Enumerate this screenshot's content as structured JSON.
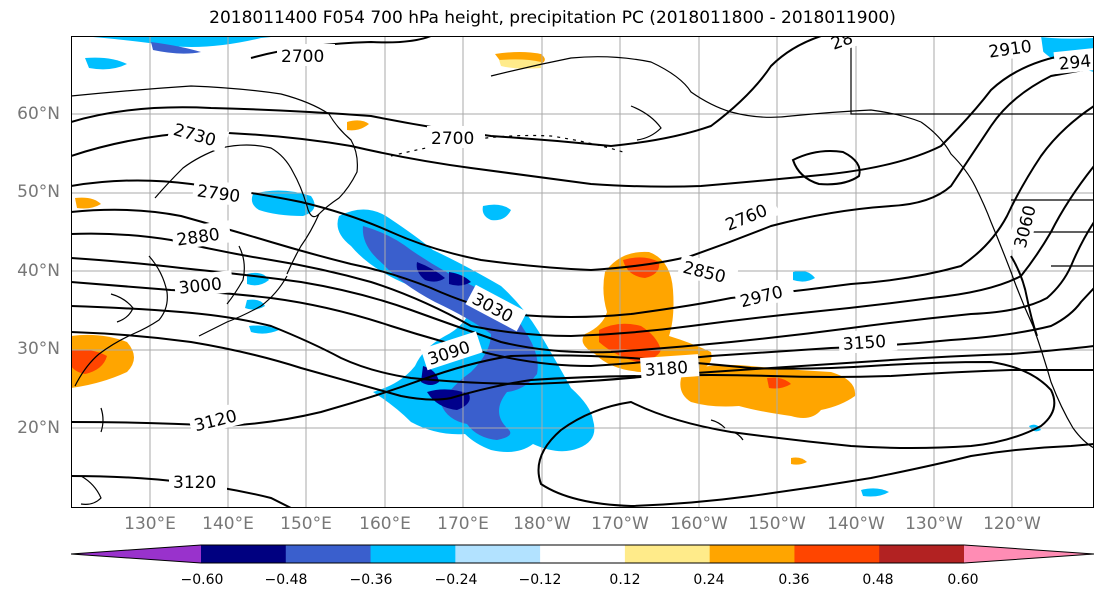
{
  "title": "2018011400 F054 700 hPa height, precipitation PC (2018011800 - 2018011900)",
  "map": {
    "lat_labels": [
      {
        "text": "60°N",
        "lat": 60
      },
      {
        "text": "50°N",
        "lat": 50
      },
      {
        "text": "40°N",
        "lat": 40
      },
      {
        "text": "30°N",
        "lat": 30
      },
      {
        "text": "20°N",
        "lat": 20
      }
    ],
    "lon_labels": [
      "130°E",
      "140°E",
      "150°E",
      "160°E",
      "170°E",
      "180°W",
      "170°W",
      "160°W",
      "150°W",
      "140°W",
      "130°W",
      "120°W"
    ],
    "contour_labels": [
      "2700",
      "2730",
      "2700",
      "2790",
      "2880",
      "3000",
      "3030",
      "3090",
      "3120",
      "3120",
      "2760",
      "2850",
      "2970",
      "3150",
      "3180",
      "3060",
      "2910",
      "294",
      "28"
    ],
    "colors": {
      "contour": "#000000",
      "coast": "#000000",
      "grid": "#aaaaaa",
      "pos_light": "#ffe680",
      "pos_mid": "#ffa500",
      "pos_strong": "#ff4500",
      "neg_light": "#00bfff",
      "neg_mid": "#3a5fcd",
      "neg_strong": "#00008b"
    }
  },
  "colorbar": {
    "bins": [
      {
        "color": "#9932cc"
      },
      {
        "color": "#000080"
      },
      {
        "color": "#3a5fcd"
      },
      {
        "color": "#00bfff"
      },
      {
        "color": "#b2e2ff"
      },
      {
        "color": "#ffffff"
      },
      {
        "color": "#ffeb8a"
      },
      {
        "color": "#ffa500"
      },
      {
        "color": "#ff4500"
      },
      {
        "color": "#b22222"
      },
      {
        "color": "#ff8cb4"
      }
    ],
    "tick_labels": [
      "−0.60",
      "−0.48",
      "−0.36",
      "−0.24",
      "−0.12",
      "0.12",
      "0.24",
      "0.36",
      "0.48",
      "0.60"
    ]
  }
}
